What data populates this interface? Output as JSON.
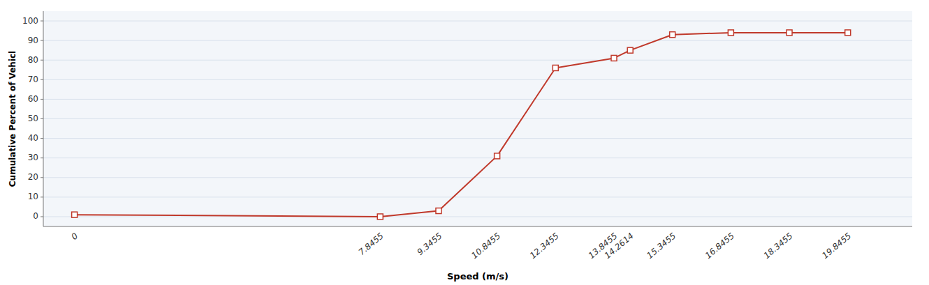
{
  "chart_data": {
    "type": "line",
    "xlabel": "Speed (m/s)",
    "ylabel": "Cumulative Percent of Vehicl",
    "x": [
      0,
      7.8455,
      9.3455,
      10.8455,
      12.3455,
      13.8455,
      14.2614,
      15.3455,
      16.8455,
      18.3455,
      19.8455
    ],
    "values": [
      1,
      0,
      3,
      31,
      76,
      81,
      85,
      93,
      94,
      94,
      94
    ],
    "color": "#c0392b",
    "marker": "square",
    "xlim": [
      -0.8,
      21.5
    ],
    "ylim": [
      -5,
      105
    ],
    "xticks": [
      0,
      7.8455,
      9.3455,
      10.8455,
      12.3455,
      13.8455,
      14.2614,
      15.3455,
      16.8455,
      18.3455,
      19.8455
    ],
    "yticks": [
      0,
      10,
      20,
      30,
      40,
      50,
      60,
      70,
      80,
      90,
      100
    ],
    "grid": "y"
  }
}
